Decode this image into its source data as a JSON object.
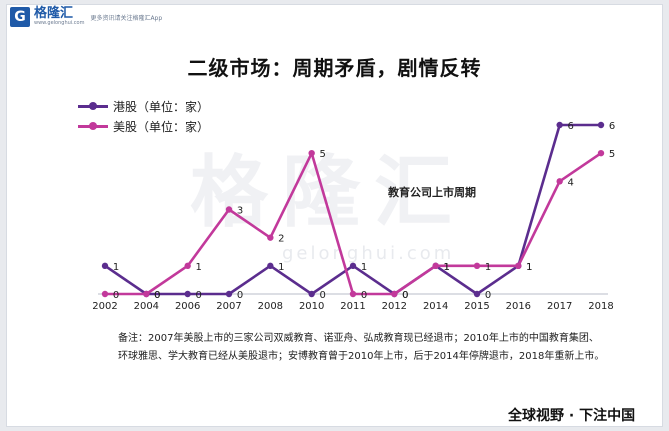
{
  "brand": {
    "name": "格隆汇",
    "url": "www.gelonghui.com",
    "tagline": "更多资讯请关注格隆汇App",
    "accent": "#1f5aa8"
  },
  "watermark": {
    "text": "格隆汇",
    "url": "gelonghui.com"
  },
  "chart_data": {
    "type": "line",
    "title": "二级市场：周期矛盾，剧情反转",
    "xlabel": "",
    "ylabel": "",
    "categories": [
      "2002",
      "2004",
      "2006",
      "2007",
      "2008",
      "2010",
      "2011",
      "2012",
      "2014",
      "2015",
      "2016",
      "2017",
      "2018"
    ],
    "ylim": [
      0,
      6
    ],
    "grid": false,
    "legend_position": "top-left",
    "series": [
      {
        "name": "港股（单位：家）",
        "color": "#5b2d8e",
        "values": [
          1,
          0,
          0,
          0,
          1,
          0,
          1,
          0,
          1,
          0,
          1,
          6,
          6
        ]
      },
      {
        "name": "美股（单位：家）",
        "color": "#c2399b",
        "values": [
          0,
          0,
          1,
          3,
          2,
          5,
          0,
          0,
          1,
          1,
          1,
          4,
          5
        ]
      }
    ],
    "annotations": [
      "教育公司上市周期"
    ]
  },
  "note": {
    "line1": "备注：2007年美股上市的三家公司双威教育、诺亚舟、弘成教育现已经退市；2010年上市的中国教育集团、",
    "line2": "环球雅思、学大教育已经从美股退市；安博教育曾于2010年上市，后于2014年停牌退市，2018年重新上市。"
  },
  "footer": {
    "text": "全球视野 · 下注中国"
  }
}
